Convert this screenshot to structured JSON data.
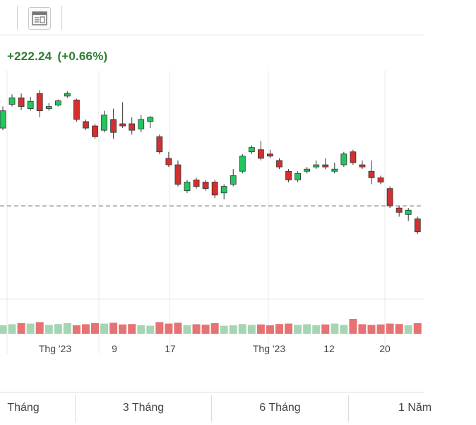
{
  "toolbar": {
    "layout_button_icon": "table-layout-icon"
  },
  "header": {
    "change_value": "+222.24",
    "change_percent": "(+0.66%)",
    "change_color": "#2e7d32"
  },
  "colors": {
    "up": "#22c55e",
    "down": "#d32f2f",
    "up_volume": "#a5d6b4",
    "down_volume": "#e57373",
    "reference_line": "#888888",
    "gridline": "#e8e8e8"
  },
  "chart_data": {
    "type": "candlestick",
    "x_tick_labels": [
      "Thg '23",
      "9",
      "17",
      "Thg '23",
      "12",
      "20"
    ],
    "candles": [
      {
        "o": 30,
        "c": 70,
        "h": 80,
        "l": 25,
        "v": 40
      },
      {
        "o": 85,
        "c": 100,
        "h": 108,
        "l": 80,
        "v": 45
      },
      {
        "o": 100,
        "c": 80,
        "h": 110,
        "l": 72,
        "v": 50
      },
      {
        "o": 75,
        "c": 92,
        "h": 102,
        "l": 70,
        "v": 48
      },
      {
        "o": 110,
        "c": 70,
        "h": 118,
        "l": 55,
        "v": 55
      },
      {
        "o": 75,
        "c": 80,
        "h": 88,
        "l": 70,
        "v": 42
      },
      {
        "o": 83,
        "c": 93,
        "h": 96,
        "l": 80,
        "v": 46
      },
      {
        "o": 104,
        "c": 110,
        "h": 115,
        "l": 100,
        "v": 50
      },
      {
        "o": 95,
        "c": 50,
        "h": 98,
        "l": 45,
        "v": 40
      },
      {
        "o": 45,
        "c": 30,
        "h": 50,
        "l": 25,
        "v": 45
      },
      {
        "o": 35,
        "c": 10,
        "h": 40,
        "l": 5,
        "v": 50
      },
      {
        "o": 25,
        "c": 60,
        "h": 70,
        "l": 20,
        "v": 48
      },
      {
        "o": 50,
        "c": 20,
        "h": 75,
        "l": 5,
        "v": 52
      },
      {
        "o": 40,
        "c": 35,
        "h": 90,
        "l": 30,
        "v": 44
      },
      {
        "o": 40,
        "c": 25,
        "h": 55,
        "l": 15,
        "v": 46
      },
      {
        "o": 28,
        "c": 50,
        "h": 60,
        "l": 20,
        "v": 40
      },
      {
        "o": 45,
        "c": 55,
        "h": 58,
        "l": 30,
        "v": 38
      },
      {
        "o": 10,
        "c": -25,
        "h": 15,
        "l": -30,
        "v": 55
      },
      {
        "o": -40,
        "c": -55,
        "h": -25,
        "l": -60,
        "v": 48
      },
      {
        "o": -55,
        "c": -100,
        "h": -45,
        "l": -105,
        "v": 52
      },
      {
        "o": -115,
        "c": -95,
        "h": -90,
        "l": -120,
        "v": 40
      },
      {
        "o": -90,
        "c": -105,
        "h": -85,
        "l": -110,
        "v": 45
      },
      {
        "o": -95,
        "c": -110,
        "h": -90,
        "l": -115,
        "v": 43
      },
      {
        "o": -95,
        "c": -125,
        "h": -90,
        "l": -132,
        "v": 50
      },
      {
        "o": -120,
        "c": -105,
        "h": -100,
        "l": -135,
        "v": 38
      },
      {
        "o": -100,
        "c": -80,
        "h": -65,
        "l": -105,
        "v": 40
      },
      {
        "o": -70,
        "c": -35,
        "h": -30,
        "l": -75,
        "v": 46
      },
      {
        "o": -25,
        "c": -15,
        "h": -10,
        "l": -30,
        "v": 42
      },
      {
        "o": -20,
        "c": -40,
        "h": 0,
        "l": -45,
        "v": 44
      },
      {
        "o": -30,
        "c": -35,
        "h": -20,
        "l": -40,
        "v": 40
      },
      {
        "o": -45,
        "c": -60,
        "h": -40,
        "l": -65,
        "v": 46
      },
      {
        "o": -70,
        "c": -90,
        "h": -65,
        "l": -95,
        "v": 48
      },
      {
        "o": -90,
        "c": -75,
        "h": -70,
        "l": -95,
        "v": 42
      },
      {
        "o": -70,
        "c": -65,
        "h": -60,
        "l": -75,
        "v": 45
      },
      {
        "o": -60,
        "c": -55,
        "h": -45,
        "l": -65,
        "v": 40
      },
      {
        "o": -55,
        "c": -60,
        "h": -40,
        "l": -65,
        "v": 44
      },
      {
        "o": -70,
        "c": -65,
        "h": -50,
        "l": -75,
        "v": 48
      },
      {
        "o": -55,
        "c": -30,
        "h": -25,
        "l": -60,
        "v": 42
      },
      {
        "o": -25,
        "c": -50,
        "h": -20,
        "l": -55,
        "v": 70
      },
      {
        "o": -55,
        "c": -60,
        "h": -45,
        "l": -65,
        "v": 45
      },
      {
        "o": -70,
        "c": -85,
        "h": -45,
        "l": -100,
        "v": 42
      },
      {
        "o": -85,
        "c": -95,
        "h": -80,
        "l": -100,
        "v": 44
      },
      {
        "o": -110,
        "c": -150,
        "h": -105,
        "l": -155,
        "v": 48
      },
      {
        "o": -155,
        "c": -165,
        "h": -150,
        "l": -175,
        "v": 46
      },
      {
        "o": -170,
        "c": -160,
        "h": -155,
        "l": -185,
        "v": 40
      },
      {
        "o": -180,
        "c": -210,
        "h": -175,
        "l": -215,
        "v": 50
      }
    ],
    "reference_price": -150,
    "ylim": [
      -230,
      130
    ]
  },
  "tabs": [
    {
      "label": "Tháng"
    },
    {
      "label": "3 Tháng"
    },
    {
      "label": "6 Tháng"
    },
    {
      "label": "1 Năm"
    }
  ]
}
